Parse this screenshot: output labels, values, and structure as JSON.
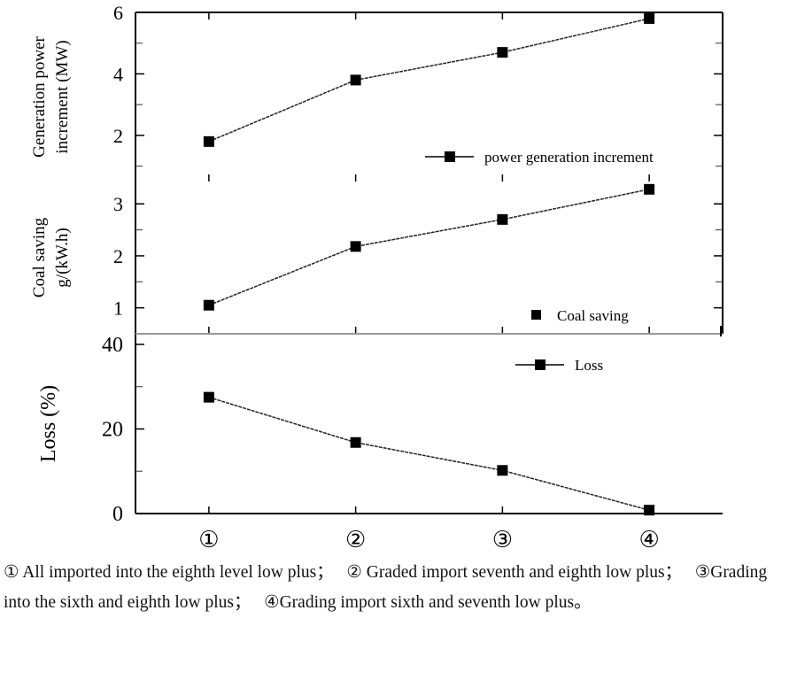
{
  "chart_data": {
    "type": "line",
    "categories": [
      "①",
      "②",
      "③",
      "④"
    ],
    "panels": [
      {
        "ylabel_lines": [
          "Generation power",
          "increment (MW)"
        ],
        "ylim": [
          0.5,
          6
        ],
        "yticks": [
          2,
          4,
          6
        ],
        "minor_ticks": [
          1,
          3,
          5
        ],
        "series": [
          {
            "name": "power generation increment",
            "values": [
              1.8,
              3.8,
              4.7,
              5.8
            ],
            "legend_style": "line-marker"
          }
        ]
      },
      {
        "ylabel_lines": [
          "Coal saving",
          "g/(kW.h)"
        ],
        "ylim": [
          0.5,
          3.43
        ],
        "yticks": [
          1,
          2,
          3
        ],
        "minor_ticks": [
          1.5,
          2.5
        ],
        "series": [
          {
            "name": "Coal saving",
            "values": [
              1.05,
              2.18,
              2.7,
              3.28
            ],
            "legend_style": "marker"
          }
        ]
      },
      {
        "ylabel_lines": [
          "Loss (%)"
        ],
        "ylim": [
          0,
          42.5
        ],
        "yticks": [
          0,
          20,
          40
        ],
        "minor_ticks": [
          10,
          30
        ],
        "series": [
          {
            "name": "Loss",
            "values": [
              27.5,
              16.8,
              10.2,
              0.8
            ],
            "legend_style": "line-marker"
          }
        ]
      }
    ],
    "xlim": [
      0.5,
      4.5
    ],
    "grid": false,
    "legend_position": "inside"
  },
  "caption": {
    "items": [
      "① All imported into the eighth level low plus；",
      "② Graded import seventh and eighth low plus；",
      "③Grading into the sixth and eighth low plus；",
      "④Grading import sixth and seventh low plus。"
    ]
  }
}
